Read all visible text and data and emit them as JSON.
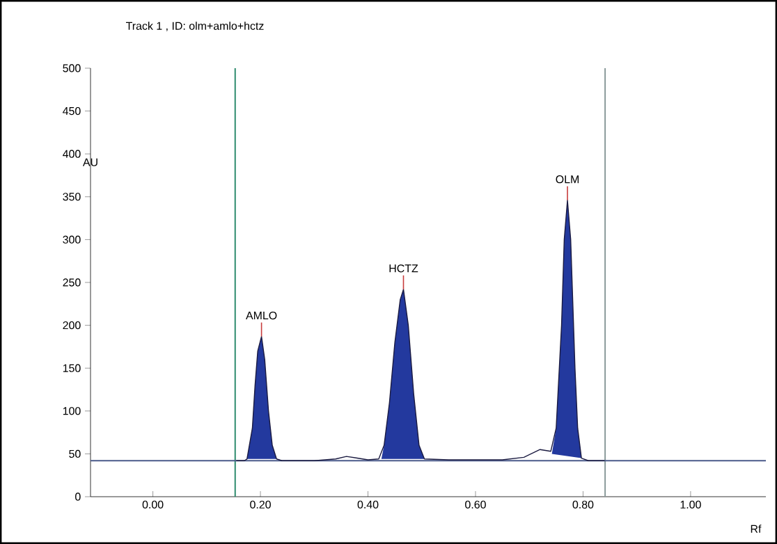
{
  "chart_data": {
    "type": "line",
    "title": "Track  1  , ID: olm+amlo+hctz",
    "xlabel": "Rf",
    "ylabel": "AU",
    "xlim": [
      -0.116,
      1.14
    ],
    "ylim": [
      0,
      500
    ],
    "xticks": [
      {
        "value": 0,
        "label": "0.00"
      },
      {
        "value": 0.2,
        "label": "0.20"
      },
      {
        "value": 0.4,
        "label": "0.40"
      },
      {
        "value": 0.6,
        "label": "0.60"
      },
      {
        "value": 0.8,
        "label": "0.80"
      },
      {
        "value": 1.0,
        "label": "1.00"
      }
    ],
    "yticks": [
      0,
      50,
      100,
      150,
      200,
      250,
      300,
      350,
      400,
      450,
      500
    ],
    "series": [
      {
        "type": "area",
        "color": "#23399e",
        "x": [
          0.175,
          0.185,
          0.19,
          0.195,
          0.202,
          0.208,
          0.215,
          0.222,
          0.23
        ],
        "values": [
          44,
          80,
          130,
          170,
          187,
          160,
          100,
          60,
          44
        ]
      },
      {
        "type": "area",
        "color": "#23399e",
        "x": [
          0.425,
          0.43,
          0.44,
          0.45,
          0.46,
          0.466,
          0.475,
          0.485,
          0.495,
          0.505
        ],
        "values": [
          44,
          60,
          110,
          180,
          230,
          242,
          200,
          120,
          60,
          44
        ]
      },
      {
        "type": "area",
        "color": "#23399e",
        "x": [
          0.742,
          0.75,
          0.76,
          0.765,
          0.771,
          0.777,
          0.785,
          0.79,
          0.797
        ],
        "values": [
          50,
          80,
          200,
          300,
          346,
          300,
          150,
          80,
          45
        ]
      },
      {
        "color": "#1a1a40",
        "x": [
          0.155,
          0.17,
          0.175,
          0.185,
          0.19,
          0.195,
          0.202,
          0.208,
          0.215,
          0.222,
          0.23,
          0.24,
          0.3,
          0.34,
          0.36,
          0.38,
          0.4,
          0.42,
          0.43,
          0.44,
          0.45,
          0.46,
          0.466,
          0.475,
          0.485,
          0.495,
          0.505,
          0.55,
          0.65,
          0.69,
          0.71,
          0.72,
          0.74,
          0.75,
          0.76,
          0.765,
          0.771,
          0.777,
          0.785,
          0.79,
          0.797,
          0.81,
          0.84
        ],
        "values": [
          42,
          42,
          44,
          80,
          130,
          170,
          187,
          160,
          100,
          60,
          44,
          42,
          42,
          44,
          47,
          45,
          43,
          44,
          60,
          110,
          180,
          230,
          242,
          200,
          120,
          60,
          44,
          43,
          43,
          46,
          52,
          55,
          53,
          80,
          200,
          300,
          346,
          300,
          150,
          80,
          45,
          42,
          42
        ]
      }
    ],
    "ref_lines": [
      {
        "axis": "x",
        "value": 0.153,
        "color": "#2e8b6e"
      },
      {
        "axis": "x",
        "value": 0.841,
        "color": "#8a9a9a"
      },
      {
        "axis": "y",
        "value": 42,
        "color": "#4a5a8a"
      }
    ],
    "annotations": [
      {
        "text": "AMLO",
        "x": 0.202,
        "y": 187
      },
      {
        "text": "HCTZ",
        "x": 0.466,
        "y": 242
      },
      {
        "text": "OLM",
        "x": 0.771,
        "y": 346
      }
    ]
  }
}
